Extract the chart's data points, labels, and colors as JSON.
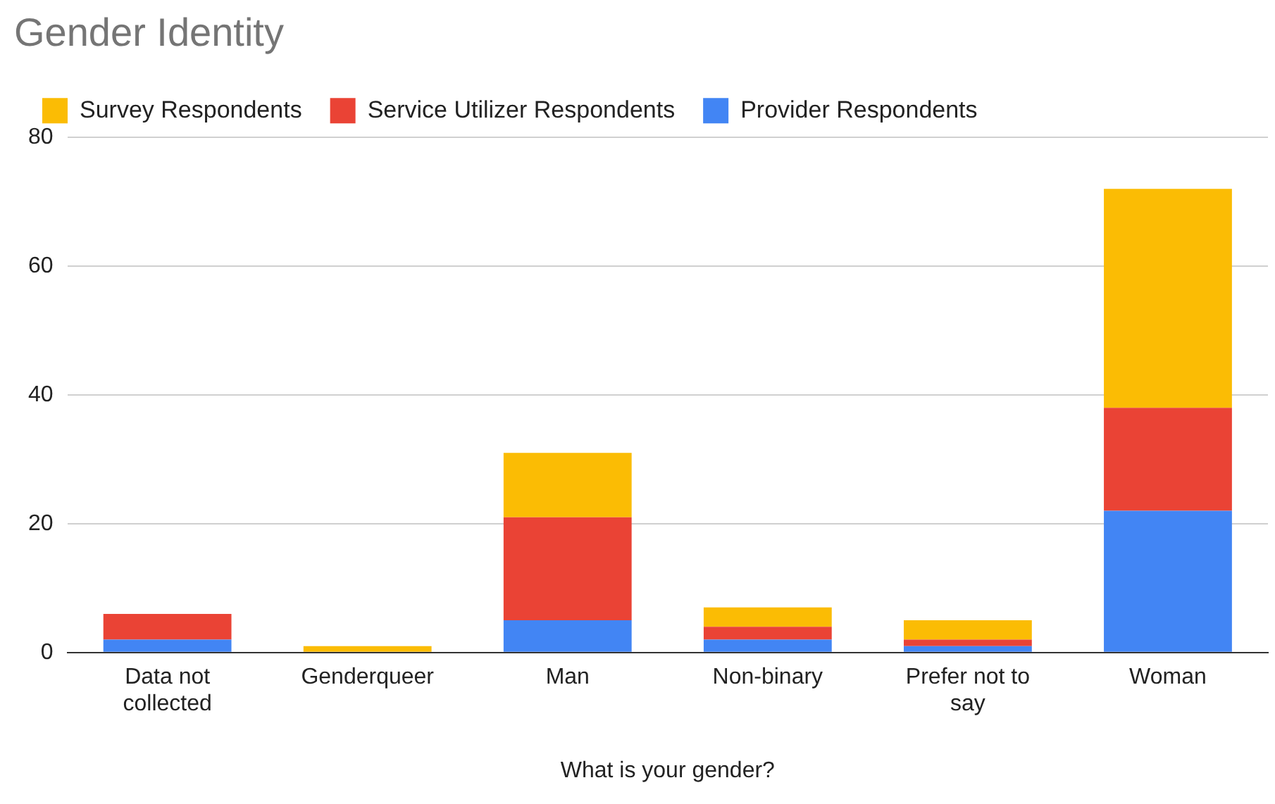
{
  "chart_data": {
    "type": "bar",
    "title": "Gender Identity",
    "xlabel": "What is your gender?",
    "categories": [
      "Data not collected",
      "Genderqueer",
      "Man",
      "Non-binary",
      "Prefer not to say",
      "Woman"
    ],
    "series": [
      {
        "name": "Provider Respondents",
        "color": "#4285f4",
        "values": [
          2,
          0,
          5,
          2,
          1,
          22
        ]
      },
      {
        "name": "Service Utilizer Respondents",
        "color": "#ea4335",
        "values": [
          4,
          0,
          16,
          2,
          1,
          16
        ]
      },
      {
        "name": "Survey Respondents",
        "color": "#fbbc04",
        "values": [
          0,
          1,
          10,
          3,
          3,
          34
        ]
      }
    ],
    "stacked": true,
    "ylim": [
      0,
      80
    ],
    "yticks": [
      0,
      20,
      40,
      60,
      80
    ],
    "grid": "y",
    "legend": "top"
  }
}
